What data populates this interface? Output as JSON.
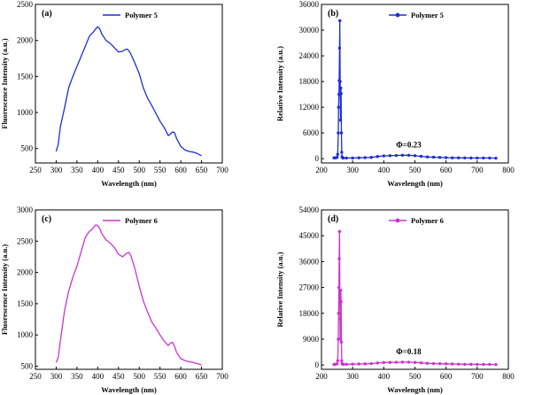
{
  "chart_data": [
    {
      "type": "line",
      "panel_label": "(a)",
      "xlabel": "Wavelength (nm)",
      "ylabel": "Fluorescence Intensity (a.u.)",
      "xlim": [
        250,
        700
      ],
      "ylim": [
        300,
        2500
      ],
      "xticks": [
        250,
        300,
        350,
        400,
        450,
        500,
        550,
        600,
        650,
        700
      ],
      "yticks": [
        500,
        1000,
        1500,
        2000,
        2500
      ],
      "legend_position": "top-center",
      "markers": false,
      "color": "#1f2fd6",
      "series": [
        {
          "name": "Polymer 5",
          "x": [
            300,
            305,
            310,
            320,
            330,
            340,
            350,
            360,
            370,
            380,
            390,
            395,
            400,
            405,
            410,
            420,
            430,
            440,
            450,
            460,
            465,
            470,
            475,
            480,
            490,
            500,
            510,
            520,
            530,
            540,
            550,
            560,
            570,
            575,
            580,
            585,
            590,
            600,
            610,
            620,
            630,
            640,
            650
          ],
          "y": [
            460,
            560,
            800,
            1060,
            1340,
            1500,
            1640,
            1780,
            1920,
            2060,
            2120,
            2160,
            2190,
            2160,
            2090,
            2000,
            1960,
            1900,
            1840,
            1850,
            1870,
            1880,
            1860,
            1810,
            1680,
            1540,
            1340,
            1200,
            1100,
            990,
            880,
            790,
            680,
            700,
            730,
            720,
            640,
            530,
            480,
            460,
            450,
            430,
            400
          ]
        }
      ]
    },
    {
      "type": "line",
      "panel_label": "(b)",
      "xlabel": "Wavelength (nm)",
      "ylabel": "Relative Intensity (a.u.)",
      "xlim": [
        200,
        800
      ],
      "ylim": [
        -1000,
        36000
      ],
      "xticks": [
        200,
        300,
        400,
        500,
        600,
        700,
        800
      ],
      "yticks": [
        0,
        6000,
        12000,
        18000,
        24000,
        30000,
        36000
      ],
      "legend_position": "top-center",
      "markers": true,
      "color": "#1f2fd6",
      "annotation": {
        "text": "Φ=0.23",
        "x": 480,
        "y": 1800
      },
      "series": [
        {
          "name": "Polymer 5",
          "x": [
            240,
            245,
            250,
            252,
            254,
            255,
            256,
            257,
            258,
            259,
            260,
            261,
            262,
            263,
            264,
            265,
            266,
            268,
            270,
            280,
            300,
            320,
            340,
            360,
            380,
            400,
            420,
            440,
            460,
            480,
            500,
            520,
            540,
            560,
            580,
            600,
            620,
            640,
            660,
            680,
            700,
            720,
            740,
            760
          ],
          "y": [
            200,
            200,
            300,
            1000,
            6000,
            12000,
            15000,
            18200,
            25800,
            32200,
            18000,
            9000,
            16500,
            15200,
            6000,
            1500,
            400,
            200,
            150,
            150,
            150,
            200,
            250,
            300,
            500,
            650,
            700,
            750,
            800,
            800,
            700,
            550,
            400,
            350,
            300,
            250,
            200,
            200,
            180,
            150,
            150,
            150,
            150,
            120
          ]
        }
      ]
    },
    {
      "type": "line",
      "panel_label": "(c)",
      "xlabel": "Wavelength (nm)",
      "ylabel": "Fluorescence Intensity (a.u.)",
      "xlim": [
        250,
        700
      ],
      "ylim": [
        450,
        3000
      ],
      "xticks": [
        250,
        300,
        350,
        400,
        450,
        500,
        550,
        600,
        650,
        700
      ],
      "yticks": [
        500,
        1000,
        1500,
        2000,
        2500,
        3000
      ],
      "legend_position": "top-center",
      "markers": false,
      "color": "#cc33cc",
      "series": [
        {
          "name": "Polymer 6",
          "x": [
            300,
            305,
            310,
            320,
            330,
            340,
            350,
            360,
            370,
            380,
            385,
            390,
            395,
            400,
            405,
            410,
            420,
            430,
            440,
            450,
            460,
            470,
            475,
            480,
            490,
            500,
            510,
            520,
            530,
            540,
            550,
            560,
            570,
            575,
            580,
            585,
            590,
            600,
            610,
            620,
            630,
            640,
            650
          ],
          "y": [
            560,
            640,
            900,
            1380,
            1700,
            1920,
            2100,
            2330,
            2560,
            2660,
            2680,
            2720,
            2760,
            2750,
            2700,
            2620,
            2520,
            2470,
            2400,
            2290,
            2250,
            2310,
            2320,
            2270,
            2050,
            1780,
            1540,
            1370,
            1210,
            1110,
            1000,
            900,
            830,
            870,
            880,
            820,
            720,
            620,
            590,
            570,
            560,
            540,
            520
          ]
        }
      ]
    },
    {
      "type": "line",
      "panel_label": "(d)",
      "xlabel": "Wavelength (nm)",
      "ylabel": "Relative Intensity (a.u.)",
      "xlim": [
        200,
        800
      ],
      "ylim": [
        -1500,
        54000
      ],
      "xticks": [
        200,
        300,
        400,
        500,
        600,
        700,
        800
      ],
      "yticks": [
        0,
        9000,
        18000,
        27000,
        36000,
        45000,
        54000
      ],
      "legend_position": "top-center",
      "markers": true,
      "color": "#cc33cc",
      "annotation": {
        "text": "Φ=0.18",
        "x": 480,
        "y": 2500
      },
      "series": [
        {
          "name": "Polymer 6",
          "x": [
            240,
            245,
            250,
            252,
            254,
            255,
            256,
            257,
            258,
            259,
            260,
            261,
            262,
            263,
            264,
            265,
            266,
            268,
            270,
            280,
            300,
            320,
            340,
            360,
            380,
            400,
            420,
            440,
            460,
            480,
            500,
            520,
            540,
            560,
            580,
            600,
            620,
            640,
            660,
            680,
            700,
            720,
            740,
            760
          ],
          "y": [
            200,
            250,
            400,
            1500,
            9000,
            18000,
            27000,
            37000,
            46500,
            26000,
            9000,
            16000,
            26000,
            22000,
            8000,
            1500,
            500,
            300,
            250,
            250,
            300,
            350,
            400,
            500,
            700,
            850,
            900,
            950,
            1000,
            1000,
            900,
            750,
            600,
            500,
            450,
            400,
            350,
            300,
            250,
            250,
            200,
            200,
            200,
            150
          ]
        }
      ]
    }
  ]
}
